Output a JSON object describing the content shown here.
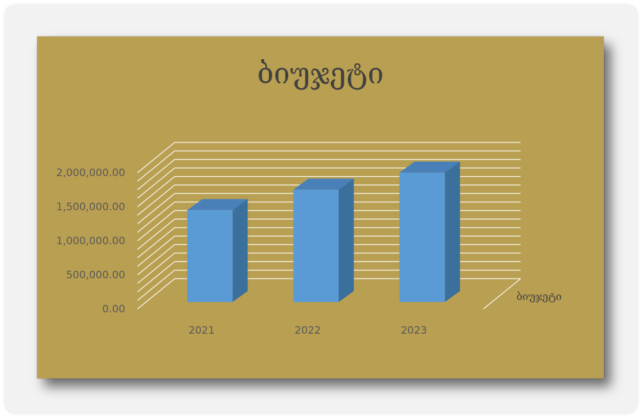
{
  "chart_data": {
    "type": "bar",
    "title": "ბიუჯეტი",
    "categories": [
      "2021",
      "2022",
      "2023"
    ],
    "series": [
      {
        "name": "ბიუჯეტი",
        "values": [
          1350000,
          1650000,
          1900000
        ]
      }
    ],
    "depth_label": "ბიუჯეტი",
    "y_ticks": [
      "0.00",
      "500,000.00",
      "1,000,000.00",
      "1,500,000.00",
      "2,000,000.00"
    ],
    "ylim": [
      0,
      2000000
    ],
    "three_d": true,
    "grid": true,
    "colors": {
      "background": "#b99f51",
      "bar_front": "#5b9bd5",
      "bar_side": "#3b6f9c",
      "bar_top": "#4a80b8",
      "grid": "#ffffff"
    }
  }
}
